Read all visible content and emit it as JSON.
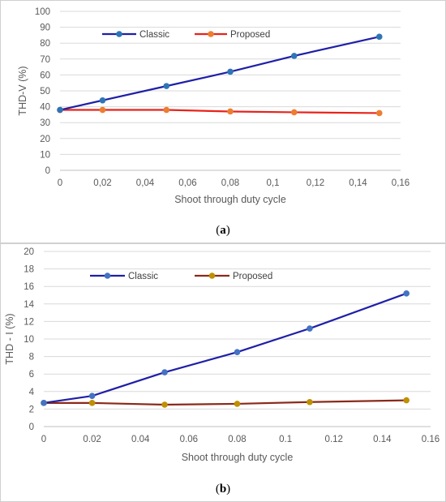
{
  "chart_data": [
    {
      "type": "line",
      "caption": {
        "open": "(",
        "letter": "a",
        "close": ")"
      },
      "xlabel": "Shoot through duty cycle",
      "ylabel": "THD-V (%)",
      "xlim": [
        0,
        0.16
      ],
      "ylim": [
        0,
        100
      ],
      "xticks": [
        0,
        0.02,
        0.04,
        0.06,
        0.08,
        0.1,
        0.12,
        0.14,
        0.16
      ],
      "xtick_labels": [
        "0",
        "0,02",
        "0,04",
        "0,06",
        "0,08",
        "0,1",
        "0,12",
        "0,14",
        "0,16"
      ],
      "yticks": [
        0,
        10,
        20,
        30,
        40,
        50,
        60,
        70,
        80,
        90,
        100
      ],
      "ytick_labels": [
        "0",
        "10",
        "20",
        "30",
        "40",
        "50",
        "60",
        "70",
        "80",
        "90",
        "100"
      ],
      "grid": "horizontal",
      "legend_position": "top-left",
      "series": [
        {
          "name": "Classic",
          "line_color": "#1f1fa8",
          "marker_color": "#2e75b6",
          "x": [
            0,
            0.02,
            0.05,
            0.08,
            0.11,
            0.15
          ],
          "y": [
            38,
            44,
            53,
            62,
            72,
            84
          ]
        },
        {
          "name": "Proposed",
          "line_color": "#e8231b",
          "marker_color": "#ed7d31",
          "x": [
            0,
            0.02,
            0.05,
            0.08,
            0.11,
            0.15
          ],
          "y": [
            38,
            38,
            38,
            37,
            36.5,
            36
          ]
        }
      ]
    },
    {
      "type": "line",
      "caption": {
        "open": "(",
        "letter": "b",
        "close": ")"
      },
      "xlabel": "Shoot through duty cycle",
      "ylabel": "THD - I (%)",
      "xlim": [
        0,
        0.16
      ],
      "ylim": [
        0,
        20
      ],
      "xticks": [
        0,
        0.02,
        0.04,
        0.06,
        0.08,
        0.1,
        0.12,
        0.14,
        0.16
      ],
      "xtick_labels": [
        "0",
        "0.02",
        "0.04",
        "0.06",
        "0.08",
        "0.1",
        "0.12",
        "0.14",
        "0.16"
      ],
      "yticks": [
        0,
        2,
        4,
        6,
        8,
        10,
        12,
        14,
        16,
        18,
        20
      ],
      "ytick_labels": [
        "0",
        "2",
        "4",
        "6",
        "8",
        "10",
        "12",
        "14",
        "16",
        "18",
        "20"
      ],
      "grid": "horizontal",
      "legend_position": "top-left",
      "series": [
        {
          "name": "Classic",
          "line_color": "#1f1fa8",
          "marker_color": "#4472c4",
          "x": [
            0,
            0.02,
            0.05,
            0.08,
            0.11,
            0.15
          ],
          "y": [
            2.7,
            3.5,
            6.2,
            8.5,
            11.2,
            15.2
          ]
        },
        {
          "name": "Proposed",
          "line_color": "#8b2a1a",
          "marker_color": "#bf9000",
          "x": [
            0,
            0.02,
            0.05,
            0.08,
            0.11,
            0.15
          ],
          "y": [
            2.7,
            2.7,
            2.5,
            2.6,
            2.8,
            3.0
          ]
        }
      ]
    }
  ]
}
